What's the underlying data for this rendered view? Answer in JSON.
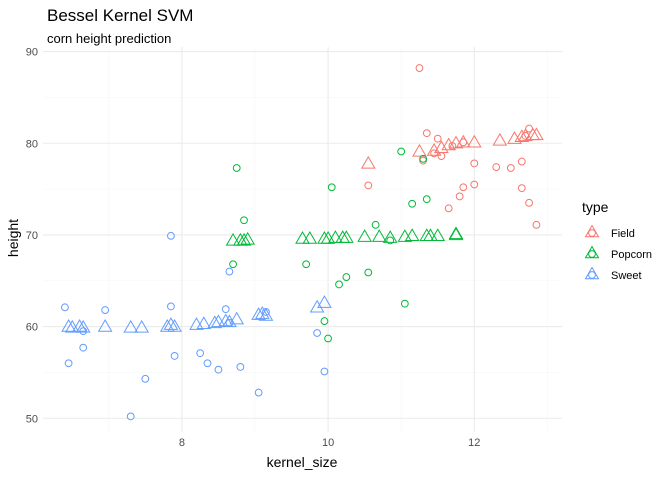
{
  "chart_data": {
    "type": "scatter",
    "title": "Bessel Kernel SVM",
    "subtitle": "corn height prediction",
    "xlabel": "kernel_size",
    "ylabel": "height",
    "xlim": [
      6.1,
      13.2
    ],
    "ylim": [
      48.5,
      90.5
    ],
    "x_ticks": [
      8,
      10,
      12
    ],
    "y_ticks": [
      50,
      60,
      70,
      80,
      90
    ],
    "x_minor": [
      7,
      9,
      11,
      13
    ],
    "y_minor": [
      55,
      65,
      75,
      85
    ],
    "grid": true,
    "legend": {
      "title": "type",
      "position": "right",
      "entries": [
        "Field",
        "Popcorn",
        "Sweet"
      ]
    },
    "colors": {
      "Field": "#F8766D",
      "Popcorn": "#00BA38",
      "Sweet": "#619CFF"
    },
    "observed": [
      {
        "type": "Field",
        "points": [
          [
            11.25,
            88.2
          ],
          [
            11.35,
            81.1
          ],
          [
            11.5,
            80.5
          ],
          [
            11.3,
            78.1
          ],
          [
            11.45,
            78.9
          ],
          [
            11.55,
            78.6
          ],
          [
            11.7,
            79.7
          ],
          [
            11.85,
            80.1
          ],
          [
            10.55,
            75.4
          ],
          [
            11.85,
            75.2
          ],
          [
            11.8,
            74.2
          ],
          [
            11.65,
            72.9
          ],
          [
            12.0,
            75.5
          ],
          [
            12.0,
            77.8
          ],
          [
            12.3,
            77.4
          ],
          [
            12.5,
            77.3
          ],
          [
            12.65,
            78.0
          ],
          [
            12.65,
            75.1
          ],
          [
            12.75,
            81.6
          ],
          [
            12.7,
            80.8
          ],
          [
            12.75,
            73.5
          ],
          [
            12.85,
            71.1
          ]
        ]
      },
      {
        "type": "Popcorn",
        "points": [
          [
            8.75,
            77.3
          ],
          [
            8.85,
            71.6
          ],
          [
            8.7,
            66.8
          ],
          [
            9.7,
            66.8
          ],
          [
            9.95,
            60.6
          ],
          [
            10.0,
            58.7
          ],
          [
            10.05,
            75.2
          ],
          [
            10.15,
            64.6
          ],
          [
            10.25,
            65.4
          ],
          [
            10.55,
            65.9
          ],
          [
            10.65,
            71.1
          ],
          [
            10.85,
            69.4
          ],
          [
            11.0,
            79.1
          ],
          [
            11.05,
            62.5
          ],
          [
            11.15,
            73.4
          ],
          [
            11.3,
            78.3
          ],
          [
            11.35,
            73.9
          ]
        ]
      },
      {
        "type": "Sweet",
        "points": [
          [
            6.4,
            62.1
          ],
          [
            6.45,
            56.0
          ],
          [
            6.65,
            57.7
          ],
          [
            6.65,
            59.5
          ],
          [
            6.95,
            61.8
          ],
          [
            7.3,
            50.2
          ],
          [
            7.5,
            54.3
          ],
          [
            7.85,
            69.9
          ],
          [
            7.85,
            62.2
          ],
          [
            7.9,
            56.8
          ],
          [
            8.25,
            57.1
          ],
          [
            8.35,
            56.0
          ],
          [
            8.5,
            55.3
          ],
          [
            8.6,
            61.9
          ],
          [
            8.65,
            60.4
          ],
          [
            8.65,
            66.0
          ],
          [
            8.8,
            55.6
          ],
          [
            9.05,
            52.8
          ],
          [
            9.15,
            61.6
          ],
          [
            9.85,
            59.3
          ],
          [
            9.95,
            55.1
          ]
        ]
      }
    ],
    "predicted": [
      {
        "type": "Field",
        "points": [
          [
            10.55,
            77.7
          ],
          [
            11.25,
            79.0
          ],
          [
            11.45,
            79.1
          ],
          [
            11.55,
            79.4
          ],
          [
            11.65,
            79.7
          ],
          [
            11.75,
            79.9
          ],
          [
            11.85,
            80.0
          ],
          [
            12.0,
            80.0
          ],
          [
            12.35,
            80.2
          ],
          [
            12.55,
            80.4
          ],
          [
            12.65,
            80.6
          ],
          [
            12.7,
            80.7
          ],
          [
            12.8,
            80.8
          ],
          [
            12.85,
            80.8
          ]
        ]
      },
      {
        "type": "Popcorn",
        "points": [
          [
            8.7,
            69.3
          ],
          [
            8.8,
            69.3
          ],
          [
            8.85,
            69.3
          ],
          [
            8.9,
            69.4
          ],
          [
            9.65,
            69.5
          ],
          [
            9.75,
            69.5
          ],
          [
            9.95,
            69.5
          ],
          [
            10.0,
            69.5
          ],
          [
            10.1,
            69.6
          ],
          [
            10.2,
            69.6
          ],
          [
            10.25,
            69.6
          ],
          [
            10.5,
            69.7
          ],
          [
            10.7,
            69.7
          ],
          [
            10.85,
            69.6
          ],
          [
            11.05,
            69.7
          ],
          [
            11.15,
            69.8
          ],
          [
            11.35,
            69.8
          ],
          [
            11.4,
            69.8
          ],
          [
            11.5,
            69.8
          ],
          [
            11.75,
            70.0
          ],
          [
            11.75,
            69.9
          ]
        ]
      },
      {
        "type": "Sweet",
        "points": [
          [
            6.45,
            59.9
          ],
          [
            6.5,
            59.8
          ],
          [
            6.6,
            59.9
          ],
          [
            6.65,
            59.8
          ],
          [
            6.95,
            59.9
          ],
          [
            7.3,
            59.8
          ],
          [
            7.45,
            59.8
          ],
          [
            7.8,
            59.9
          ],
          [
            7.85,
            60.1
          ],
          [
            7.9,
            59.9
          ],
          [
            8.2,
            60.1
          ],
          [
            8.3,
            60.2
          ],
          [
            8.45,
            60.3
          ],
          [
            8.5,
            60.4
          ],
          [
            8.6,
            60.5
          ],
          [
            8.65,
            60.4
          ],
          [
            8.75,
            60.7
          ],
          [
            9.05,
            61.2
          ],
          [
            9.1,
            61.3
          ],
          [
            9.15,
            61.1
          ],
          [
            9.85,
            62.0
          ],
          [
            9.95,
            62.5
          ]
        ]
      }
    ]
  }
}
